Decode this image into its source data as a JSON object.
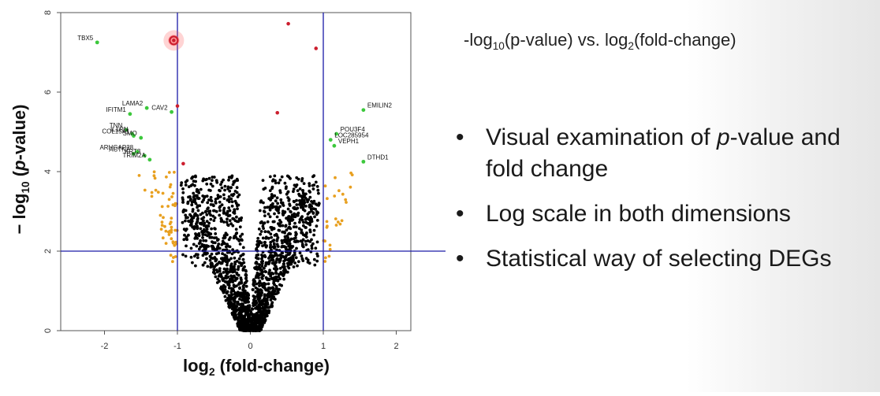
{
  "slide": {
    "title": {
      "pre": "-log",
      "pre_sub": "10",
      "mid": "(p-value) vs. log",
      "mid_sub": "2",
      "post": "(fold-change)"
    },
    "bullets": [
      {
        "dot": "•",
        "pre": "Visual examination of ",
        "italic": "p",
        "post": "-value and fold change"
      },
      {
        "dot": "•",
        "pre": "Log scale in both dimensions",
        "italic": "",
        "post": ""
      },
      {
        "dot": "•",
        "pre": "Statistical way of selecting DEGs",
        "italic": "",
        "post": ""
      }
    ]
  },
  "chart_data": {
    "type": "scatter",
    "title": "",
    "xlabel": {
      "pre": "log",
      "sub": "2",
      "post": " (fold-change)"
    },
    "ylabel": {
      "pre": "− log",
      "sub": "10",
      "mid": " (",
      "italic": "p",
      "post": "-value)"
    },
    "xlim": [
      -2.6,
      2.2
    ],
    "ylim": [
      0,
      8
    ],
    "x_ticks": [
      "-2",
      "-1",
      "0",
      "1",
      "2"
    ],
    "y_ticks": [
      "0",
      "2",
      "4",
      "6",
      "8"
    ],
    "thresholds": {
      "x": [
        -1,
        1
      ],
      "y": 2
    },
    "colors": {
      "not_significant": "#000000",
      "significant_small_fc": "#e8a020",
      "labeled_genes": "#3cc83c",
      "highlight": "#cc1e2e",
      "threshold_lines": "#1a1aa8",
      "highlight_glow": "#ff5555"
    },
    "series": [
      {
        "group": "labeled_genes",
        "points": [
          {
            "label": "TBX5",
            "x": -2.1,
            "y": 7.25
          },
          {
            "label": "LAMA2",
            "x": -1.42,
            "y": 5.6
          },
          {
            "label": "CAV2",
            "x": -1.08,
            "y": 5.5
          },
          {
            "label": "IFITM1",
            "x": -1.65,
            "y": 5.45
          },
          {
            "label": "TNN",
            "x": -1.7,
            "y": 5.05
          },
          {
            "label": "IL1RN",
            "x": -1.62,
            "y": 4.95
          },
          {
            "label": "COL15A1",
            "x": -1.6,
            "y": 4.9
          },
          {
            "label": "SMO",
            "x": -1.5,
            "y": 4.85
          },
          {
            "label": "ARHGAP28",
            "x": -1.55,
            "y": 4.5
          },
          {
            "label": "ACTN2",
            "x": -1.6,
            "y": 4.45
          },
          {
            "label": "KRT3",
            "x": -1.45,
            "y": 4.4
          },
          {
            "label": "TRIM2A",
            "x": -1.38,
            "y": 4.3
          },
          {
            "label": "EMILIN2",
            "x": 1.55,
            "y": 5.55
          },
          {
            "label": "POU3F4",
            "x": 1.18,
            "y": 4.95
          },
          {
            "label": "LOC285954",
            "x": 1.1,
            "y": 4.8
          },
          {
            "label": "VEPH1",
            "x": 1.15,
            "y": 4.65
          },
          {
            "label": "DTHD1",
            "x": 1.55,
            "y": 4.25
          }
        ]
      },
      {
        "group": "highlight",
        "points": [
          {
            "x": -1.05,
            "y": 7.3
          },
          {
            "x": 0.52,
            "y": 7.72
          },
          {
            "x": 0.9,
            "y": 7.1
          },
          {
            "x": 0.37,
            "y": 5.48
          },
          {
            "x": -0.92,
            "y": 4.2
          },
          {
            "x": -1.0,
            "y": 5.65
          }
        ]
      }
    ],
    "cloud": {
      "description_free": true,
      "not_significant_band": {
        "x_max_at_top": 1.0,
        "y_top": 3.8
      },
      "significant_small_fc_band": {
        "x_from": 1.0,
        "x_to": 1.6,
        "y_from": 1.6,
        "y_to": 4.0
      }
    }
  }
}
